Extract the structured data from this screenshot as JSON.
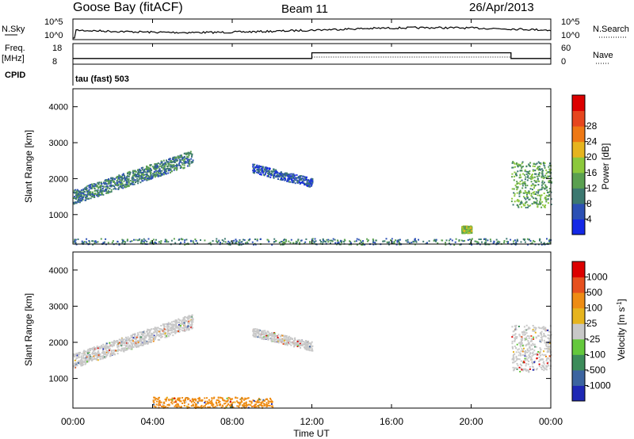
{
  "header": {
    "station": "Goose Bay (fitACF)",
    "beam": "Beam 11",
    "date": "26/Apr/2013"
  },
  "noise_panel": {
    "left_label": "N.Sky",
    "right_label": "N.Search",
    "left_ticks": [
      "10^5",
      "10^0"
    ],
    "right_ticks": [
      "10^5",
      "10^0"
    ]
  },
  "freq_panel": {
    "left_label_line1": "Freq.",
    "left_label_line2": "[MHz]",
    "cpid_label": "CPID",
    "left_ticks": [
      "18",
      "8"
    ],
    "right_label": "Nave",
    "right_ticks": [
      "60",
      "0"
    ],
    "cpid_text": "tau (fast) 503"
  },
  "axes": {
    "xlabel": "Time UT",
    "x_ticks": [
      "00:00",
      "04:00",
      "08:00",
      "12:00",
      "16:00",
      "20:00",
      "00:00"
    ],
    "ylabel": "Slant Range [km]",
    "y_ticks": [
      "1000",
      "2000",
      "3000",
      "4000"
    ]
  },
  "power_scale": {
    "label": "Power [dB]",
    "ticks": [
      "4",
      "8",
      "12",
      "16",
      "20",
      "24",
      "28"
    ],
    "colors": [
      "#1428e6",
      "#2c50b4",
      "#3c7870",
      "#5aa050",
      "#8cc83c",
      "#e6b41e",
      "#ee7814",
      "#e6461e",
      "#dc0000"
    ]
  },
  "velocity_scale": {
    "label": "Velocity [m s",
    "label_sup": "-1",
    "label_end": "]",
    "ticks": [
      "1000",
      "500",
      "100",
      "25",
      "-25",
      "-100",
      "-500",
      "-1000"
    ],
    "colors": [
      "#1e28b4",
      "#3c64a0",
      "#3c8c5a",
      "#64c83c",
      "#c8c8c8",
      "#e6b41e",
      "#ee8c14",
      "#e6501e",
      "#dc0000"
    ]
  },
  "chart_data": [
    {
      "type": "line",
      "title": "N.Sky / N.Search",
      "x_range_hours": [
        0,
        24
      ],
      "yscale": "log",
      "note_values": "noise level roughly constant near 10^1.5 with small fluctuations"
    },
    {
      "type": "line",
      "series": [
        {
          "name": "Freq.",
          "points": [
            [
              0,
              10
            ],
            [
              6,
              10
            ],
            [
              12,
              14
            ],
            [
              22,
              14
            ],
            [
              22,
              10
            ],
            [
              24,
              10
            ]
          ]
        },
        {
          "name": "Nave",
          "points": [
            [
              0,
              30
            ],
            [
              24,
              30
            ]
          ]
        }
      ],
      "x_range_hours": [
        0,
        24
      ]
    },
    {
      "type": "heatmap",
      "title": "Power [dB]",
      "xlabel": "Time UT",
      "ylabel": "Slant Range [km]",
      "x_range_hours": [
        0,
        24
      ],
      "ylim": [
        180,
        4500
      ],
      "scatter_regions": [
        {
          "t": [
            0,
            6
          ],
          "range": [
            1300,
            2800
          ],
          "power": 12
        },
        {
          "t": [
            9,
            12
          ],
          "range": [
            1800,
            2500
          ],
          "power": 8
        },
        {
          "t": [
            19.5,
            20
          ],
          "range": [
            500,
            700
          ],
          "power": 20
        },
        {
          "t": [
            22,
            24
          ],
          "range": [
            1200,
            2500
          ],
          "power": 16
        },
        {
          "t": [
            0,
            24
          ],
          "range": [
            180,
            350
          ],
          "power": 12
        }
      ]
    },
    {
      "type": "heatmap",
      "title": "Velocity [m s-1]",
      "xlabel": "Time UT",
      "ylabel": "Slant Range [km]",
      "x_range_hours": [
        0,
        24
      ],
      "ylim": [
        180,
        4500
      ],
      "scatter_regions": [
        {
          "t": [
            0,
            6
          ],
          "range": [
            1300,
            2800
          ],
          "velocity": 0
        },
        {
          "t": [
            9,
            12
          ],
          "range": [
            1800,
            2500
          ],
          "velocity": 0
        },
        {
          "t": [
            4,
            10
          ],
          "range": [
            200,
            500
          ],
          "velocity": -300
        },
        {
          "t": [
            22,
            24
          ],
          "range": [
            1200,
            2500
          ],
          "velocity": 0
        }
      ]
    }
  ]
}
